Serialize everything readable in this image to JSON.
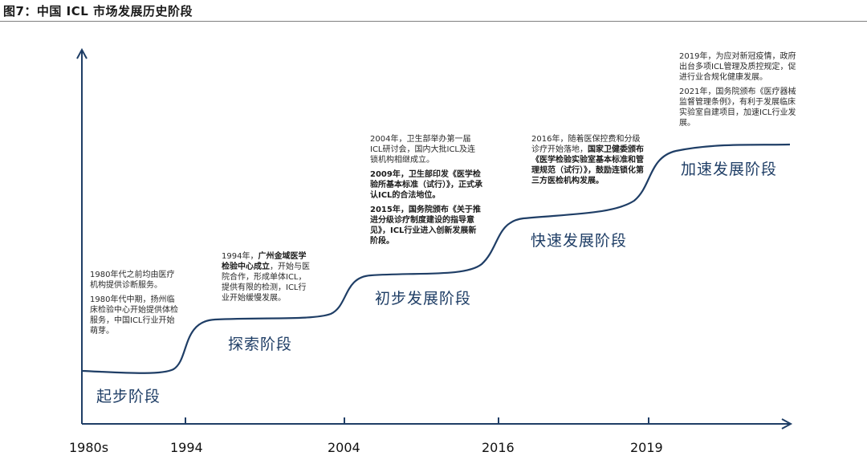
{
  "figure": {
    "title": "图7：中国 ICL 市场发展历史阶段"
  },
  "axis": {
    "years": [
      "1980s",
      "1994",
      "2004",
      "2016",
      "2019"
    ]
  },
  "stages": [
    "起步阶段",
    "探索阶段",
    "初步发展阶段",
    "快速发展阶段",
    "加速发展阶段"
  ],
  "notes": {
    "n1980": {
      "p1": "1980年代之前均由医疗机构提供诊断服务。",
      "p2": "1980年代中期，扬州临床检验中心开始提供体检服务，中国ICL行业开始萌芽。"
    },
    "n1994": {
      "a": "1994年，",
      "b": "广州金域医学检验中心成立",
      "c": "，开始与医院合作，形成单体ICL，提供有限的检测，ICL行业开始缓慢发展。"
    },
    "n2004": {
      "p1": "2004年，卫生部举办第一届ICL研讨会，国内大批ICL及连锁机构相继成立。",
      "p2": "2009年，卫生部印发《医学检验所基本标准（试行）》，正式承认ICL的合法地位。",
      "p3": "2015年，国务院颁布《关于推进分级诊疗制度建设的指导意见》，ICL行业进入创新发展新阶段。"
    },
    "n2016": {
      "a": "2016年，随着医保控费和分级诊疗开始落地，",
      "b": "国家卫健委颁布《医学检验实验室基本标准和管理规范（试行）》，鼓励连锁化第三方医检机构发展。"
    },
    "n2019": {
      "p1": "2019年，为应对新冠疫情，政府出台多项ICL管理及质控规定，促进行业合规化健康发展。",
      "p2": "2021年，国务院颁布《医疗器械监督管理条例》，有利于发展临床实验室自建项目，加速ICL行业发展。"
    }
  }
}
